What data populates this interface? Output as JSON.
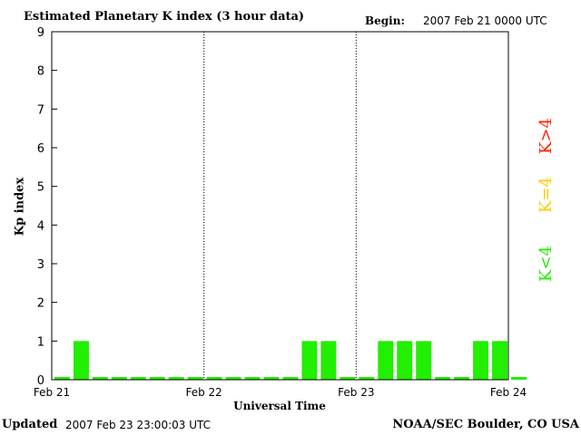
{
  "header": {
    "title": "Estimated Planetary K index (3 hour data)",
    "begin_label": "Begin:",
    "begin_value": "2007 Feb 21 0000 UTC"
  },
  "footer": {
    "updated_label": "Updated",
    "updated_value": "2007 Feb 23 23:00:03 UTC",
    "credit": "NOAA/SEC Boulder, CO USA"
  },
  "legend": {
    "gt4": {
      "label": "K>4",
      "color": "#ff2200"
    },
    "eq4": {
      "label": "K=4",
      "color": "#ffcc00"
    },
    "lt4": {
      "label": "K<4",
      "color": "#22ee00"
    }
  },
  "chart_data": {
    "type": "bar",
    "title": "Estimated Planetary K index (3 hour data)",
    "xlabel": "Universal Time",
    "ylabel": "Kp index",
    "ylim": [
      0,
      9
    ],
    "yticks": [
      0,
      1,
      2,
      3,
      4,
      5,
      6,
      7,
      8,
      9
    ],
    "xticks": [
      "Feb 21",
      "Feb 22",
      "Feb 23",
      "Feb 24"
    ],
    "interval_hours": 3,
    "grid": "vertical dotted lines at day boundaries",
    "bar_color": "#22ee00",
    "series": [
      {
        "values": [
          0,
          1,
          0,
          0,
          0,
          0,
          0,
          0,
          0,
          0,
          0,
          0,
          0,
          1,
          1,
          0,
          0,
          1,
          1,
          1,
          0,
          0,
          1,
          1,
          0
        ]
      }
    ]
  }
}
